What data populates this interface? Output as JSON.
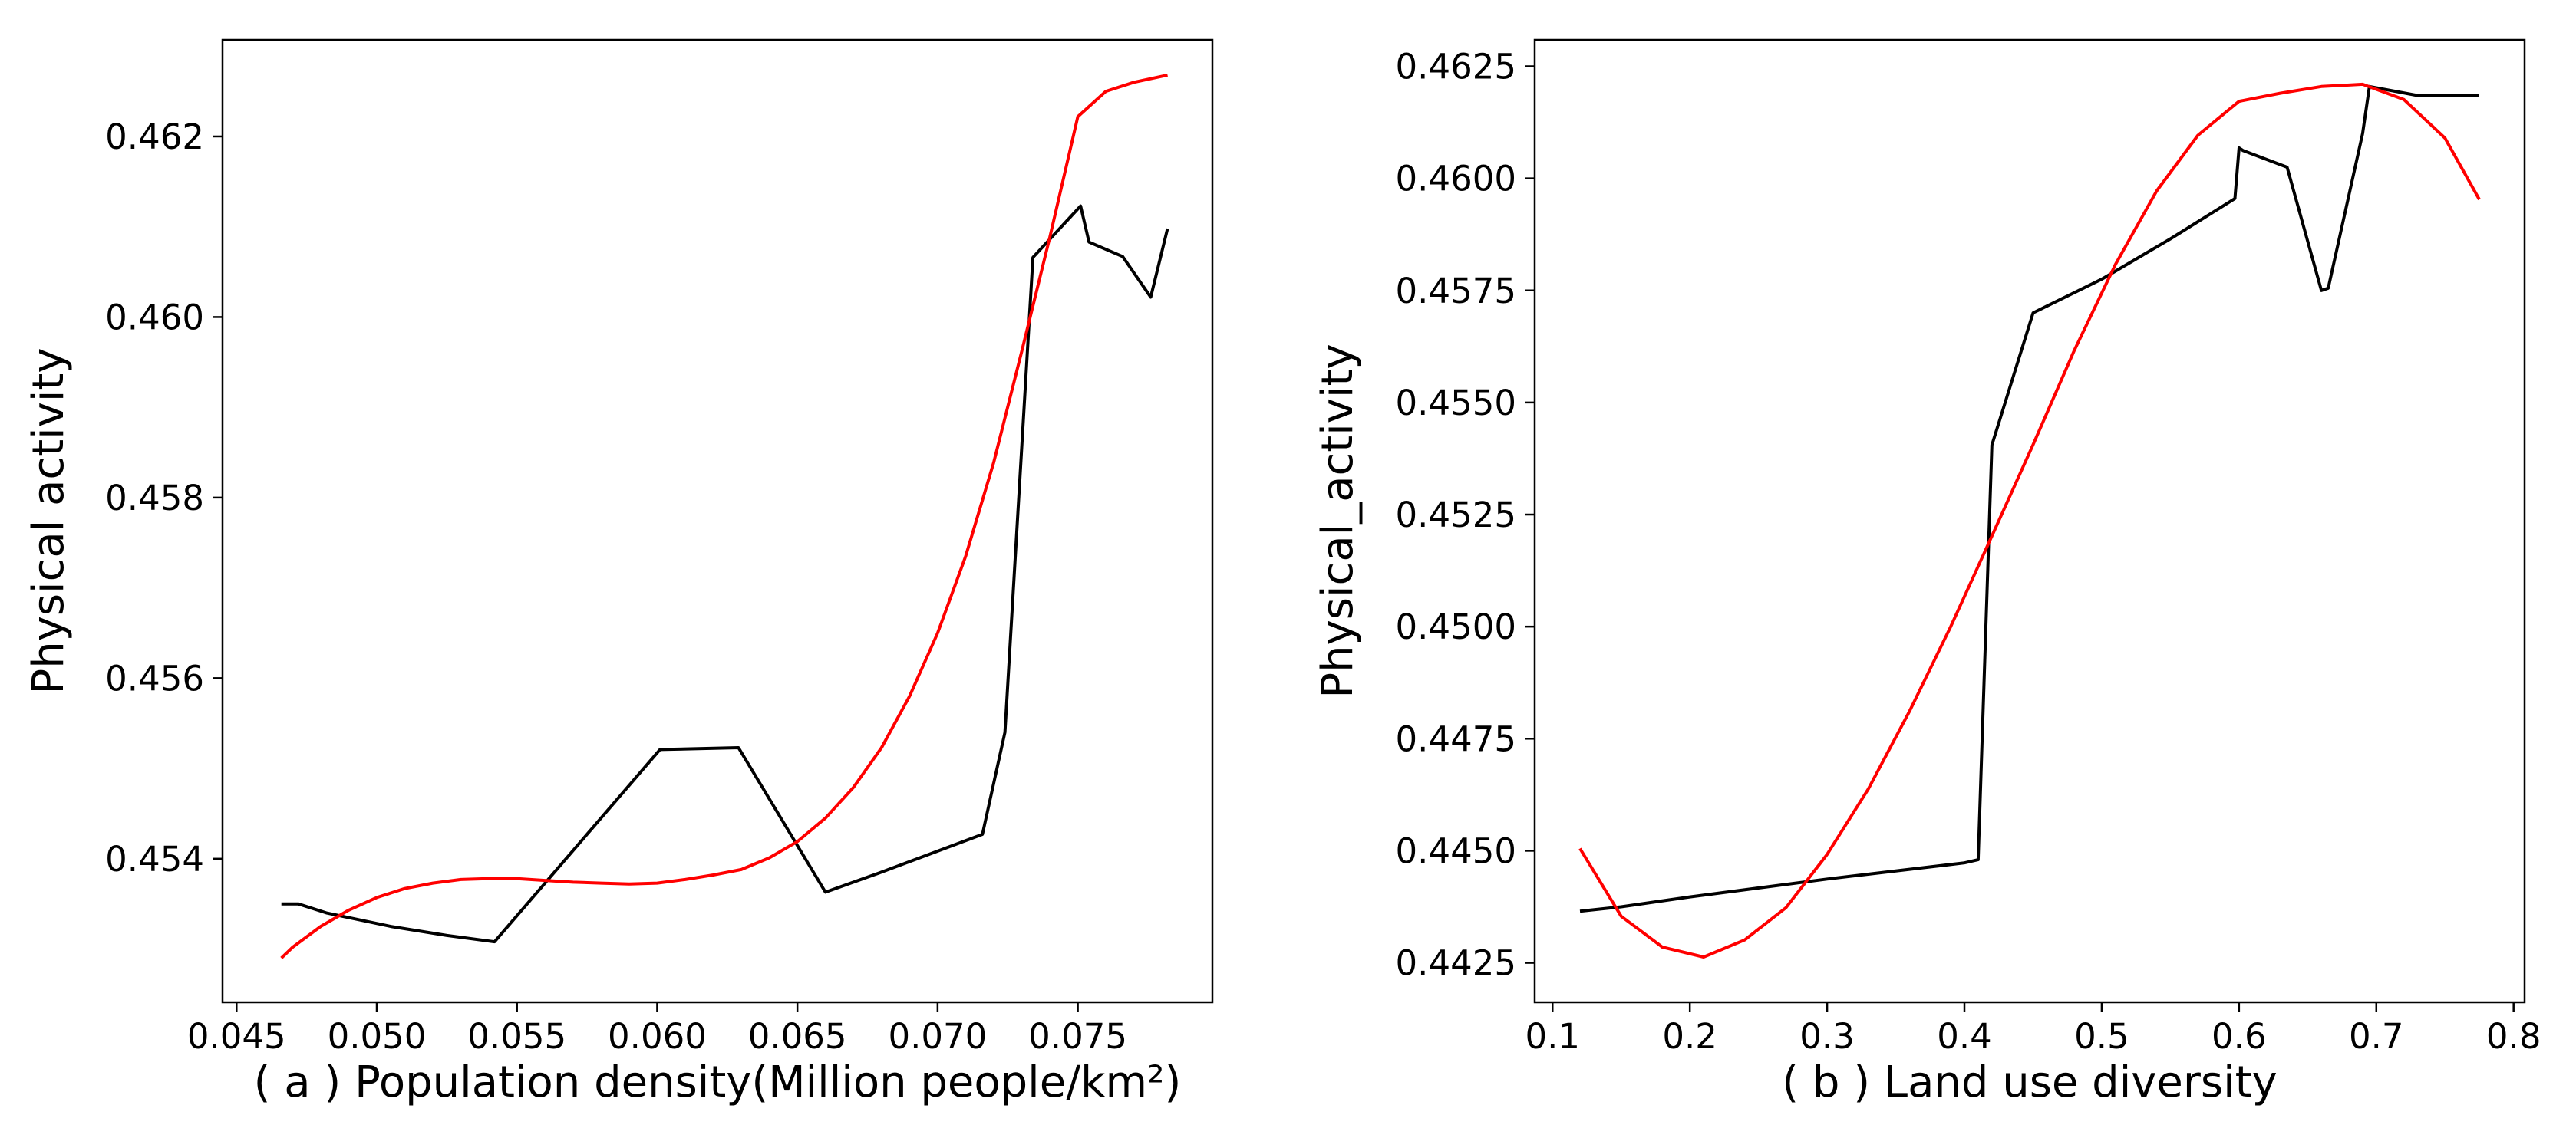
{
  "chart_data": [
    {
      "type": "line",
      "xlabel": "( a ) Population density(Million people/km²)",
      "ylabel": "Physical activity",
      "xlim": [
        0.0445,
        0.0798
      ],
      "ylim": [
        0.45241,
        0.46307
      ],
      "xticks": [
        0.045,
        0.05,
        0.055,
        0.06,
        0.065,
        0.07,
        0.075
      ],
      "xtick_labels": [
        "0.045",
        "0.050",
        "0.055",
        "0.060",
        "0.065",
        "0.070",
        "0.075"
      ],
      "yticks": [
        0.454,
        0.456,
        0.458,
        0.46,
        0.462
      ],
      "ytick_labels": [
        "0.454",
        "0.456",
        "0.458",
        "0.460",
        "0.462"
      ],
      "grid": false,
      "legend": "none",
      "series": [
        {
          "color": "#000000",
          "x": [
            0.0466,
            0.0472,
            0.0482,
            0.0505,
            0.0525,
            0.0542,
            0.0601,
            0.0629,
            0.066,
            0.0679,
            0.0716,
            0.0724,
            0.0734,
            0.0751,
            0.0754,
            0.0766,
            0.0776,
            0.0782
          ],
          "y": [
            0.4535,
            0.4535,
            0.4534,
            0.45325,
            0.45315,
            0.45308,
            0.45521,
            0.45523,
            0.45363,
            0.45384,
            0.45427,
            0.4554,
            0.46066,
            0.46123,
            0.46083,
            0.46067,
            0.46022,
            0.46098
          ]
        },
        {
          "color": "#ff0000",
          "x": [
            0.0466,
            0.047,
            0.048,
            0.049,
            0.05,
            0.051,
            0.052,
            0.053,
            0.054,
            0.055,
            0.056,
            0.057,
            0.058,
            0.059,
            0.06,
            0.061,
            0.062,
            0.063,
            0.064,
            0.065,
            0.066,
            0.067,
            0.068,
            0.069,
            0.07,
            0.071,
            0.072,
            0.073,
            0.074,
            0.075,
            0.076,
            0.077,
            0.0782
          ],
          "y": [
            0.4529,
            0.45302,
            0.45325,
            0.45343,
            0.45357,
            0.45367,
            0.45373,
            0.45377,
            0.45378,
            0.45378,
            0.45376,
            0.45374,
            0.45373,
            0.45372,
            0.45373,
            0.45377,
            0.45382,
            0.45388,
            0.45401,
            0.45419,
            0.45445,
            0.45479,
            0.45523,
            0.4558,
            0.4565,
            0.45735,
            0.45839,
            0.45962,
            0.46088,
            0.46222,
            0.4625,
            0.4626,
            0.46268
          ]
        }
      ]
    },
    {
      "type": "line",
      "xlabel": "( b ) Land use diversity",
      "ylabel": "Physical_activity",
      "xlim": [
        0.087,
        0.808
      ],
      "ylim": [
        0.44162,
        0.46309
      ],
      "xticks": [
        0.1,
        0.2,
        0.3,
        0.4,
        0.5,
        0.6,
        0.7,
        0.8
      ],
      "xtick_labels": [
        "0.1",
        "0.2",
        "0.3",
        "0.4",
        "0.5",
        "0.6",
        "0.7",
        "0.8"
      ],
      "yticks": [
        0.4425,
        0.445,
        0.4475,
        0.45,
        0.4525,
        0.455,
        0.4575,
        0.46,
        0.4625
      ],
      "ytick_labels": [
        "0.4425",
        "0.4450",
        "0.4475",
        "0.4500",
        "0.4525",
        "0.4550",
        "0.4575",
        "0.4600",
        "0.4625"
      ],
      "grid": false,
      "legend": "none",
      "series": [
        {
          "color": "#000000",
          "x": [
            0.12,
            0.15,
            0.2,
            0.3,
            0.4,
            0.41,
            0.42,
            0.45,
            0.5,
            0.55,
            0.597,
            0.6,
            0.603,
            0.635,
            0.66,
            0.665,
            0.69,
            0.695,
            0.73,
            0.775
          ],
          "y": [
            0.44365,
            0.44375,
            0.44397,
            0.44437,
            0.44473,
            0.4448,
            0.45405,
            0.457,
            0.45775,
            0.45865,
            0.45955,
            0.46068,
            0.46062,
            0.46025,
            0.4575,
            0.45755,
            0.461,
            0.46205,
            0.46185,
            0.46185
          ]
        },
        {
          "color": "#ff0000",
          "x": [
            0.12,
            0.15,
            0.18,
            0.21,
            0.24,
            0.27,
            0.3,
            0.33,
            0.36,
            0.39,
            0.42,
            0.45,
            0.48,
            0.51,
            0.54,
            0.57,
            0.6,
            0.63,
            0.66,
            0.69,
            0.72,
            0.75,
            0.775
          ],
          "y": [
            0.44505,
            0.44354,
            0.44285,
            0.44263,
            0.44301,
            0.44373,
            0.44492,
            0.44638,
            0.44811,
            0.45,
            0.45202,
            0.45406,
            0.45616,
            0.45808,
            0.45972,
            0.46096,
            0.46172,
            0.4619,
            0.46205,
            0.4621,
            0.46176,
            0.4609,
            0.45953
          ]
        }
      ]
    }
  ]
}
